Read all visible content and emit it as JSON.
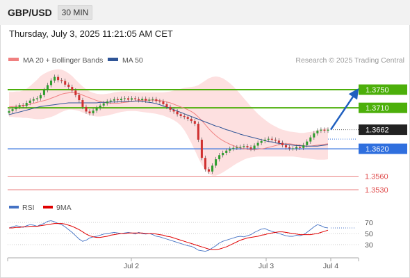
{
  "header": {
    "symbol": "GBP/USD",
    "timeframe": "30 MIN",
    "datetime": "Thursday, July 3, 2025 11:21:05 AM CET"
  },
  "legend": {
    "bollinger": {
      "label": "MA 20 + Bollinger Bands",
      "color": "#f08080"
    },
    "ma50": {
      "label": "MA 50",
      "color": "#2f5597"
    },
    "credit": "Research © 2025 Trading Central"
  },
  "rsi_legend": {
    "rsi": {
      "label": "RSI",
      "color": "#4472c4"
    },
    "ma9": {
      "label": "9MA",
      "color": "#e00000"
    }
  },
  "chart_data": {
    "type": "candlestick",
    "symbol": "GBP/USD",
    "timeframe": "30 MIN",
    "x_ticks": [
      "Jul 2",
      "Jul 3",
      "Jul 4"
    ],
    "y_range": [
      1.351,
      1.38
    ],
    "current_price": "1.3662",
    "levels": [
      {
        "value": "1.3750",
        "type": "resistance",
        "color": "#4caf0a",
        "style": "badge"
      },
      {
        "value": "1.3710",
        "type": "resistance",
        "color": "#4caf0a",
        "style": "badge"
      },
      {
        "value": "1.3620",
        "type": "pivot",
        "color": "#2f6fde",
        "style": "badge"
      },
      {
        "value": "1.3560",
        "type": "support",
        "color": "#e05050",
        "style": "text"
      },
      {
        "value": "1.3530",
        "type": "support",
        "color": "#e05050",
        "style": "text"
      }
    ],
    "closes": [
      1.3703,
      1.3707,
      1.3712,
      1.3716,
      1.3714,
      1.3721,
      1.3726,
      1.3729,
      1.3731,
      1.3738,
      1.3749,
      1.376,
      1.377,
      1.3778,
      1.3771,
      1.3769,
      1.3761,
      1.3756,
      1.3748,
      1.3738,
      1.3727,
      1.3712,
      1.3702,
      1.3698,
      1.3704,
      1.371,
      1.3715,
      1.372,
      1.3724,
      1.3726,
      1.3729,
      1.3727,
      1.373,
      1.3731,
      1.3728,
      1.3731,
      1.3729,
      1.3727,
      1.373,
      1.3726,
      1.3728,
      1.3729,
      1.3725,
      1.3724,
      1.3718,
      1.3712,
      1.3706,
      1.3702,
      1.3696,
      1.3692,
      1.369,
      1.3686,
      1.3681,
      1.3675,
      1.364,
      1.36,
      1.3575,
      1.357,
      1.3583,
      1.3597,
      1.3606,
      1.3611,
      1.3616,
      1.362,
      1.3622,
      1.3623,
      1.3624,
      1.3626,
      1.3623,
      1.362,
      1.3627,
      1.3633,
      1.3637,
      1.364,
      1.3642,
      1.364,
      1.3638,
      1.3633,
      1.3628,
      1.3623,
      1.3621,
      1.3621,
      1.3624,
      1.3622,
      1.3628,
      1.3636,
      1.3645,
      1.3654,
      1.366,
      1.3662,
      1.366,
      1.3662
    ],
    "ma20": [
      1.3712,
      1.3713,
      1.3713,
      1.3714,
      1.3715,
      1.3716,
      1.3718,
      1.372,
      1.3722,
      1.3724,
      1.3726,
      1.3728,
      1.3731,
      1.3734,
      1.3737,
      1.374,
      1.3742,
      1.3743,
      1.3744,
      1.3743,
      1.3741,
      1.3738,
      1.3735,
      1.3732,
      1.3729,
      1.3726,
      1.3724,
      1.3722,
      1.3721,
      1.372,
      1.372,
      1.372,
      1.3721,
      1.3722,
      1.3723,
      1.3724,
      1.3725,
      1.3726,
      1.3727,
      1.3727,
      1.3727,
      1.3727,
      1.3727,
      1.3726,
      1.3725,
      1.3723,
      1.3721,
      1.3718,
      1.3715,
      1.3712,
      1.3709,
      1.3706,
      1.3702,
      1.3697,
      1.369,
      1.3682,
      1.3673,
      1.3664,
      1.3656,
      1.3649,
      1.3643,
      1.3638,
      1.3634,
      1.363,
      1.3627,
      1.3624,
      1.3622,
      1.362,
      1.3619,
      1.3618,
      1.3618,
      1.3619,
      1.362,
      1.3621,
      1.3623,
      1.3625,
      1.3627,
      1.3629,
      1.363,
      1.3631,
      1.3631,
      1.363,
      1.3629,
      1.3628,
      1.3627,
      1.3626,
      1.3626,
      1.3627,
      1.3628,
      1.3629,
      1.363,
      1.3631
    ],
    "bb_upper": [
      1.3745,
      1.3745,
      1.3746,
      1.3746,
      1.3748,
      1.3752,
      1.3758,
      1.3765,
      1.3772,
      1.378,
      1.3785,
      1.3789,
      1.3792,
      1.3794,
      1.3795,
      1.3794,
      1.3791,
      1.3786,
      1.378,
      1.3772,
      1.3764,
      1.3757,
      1.3751,
      1.3746,
      1.3743,
      1.3741,
      1.374,
      1.374,
      1.3741,
      1.3742,
      1.3744,
      1.3745,
      1.3746,
      1.3746,
      1.3746,
      1.3745,
      1.3744,
      1.3744,
      1.3744,
      1.3744,
      1.3744,
      1.3744,
      1.3744,
      1.3744,
      1.3744,
      1.3745,
      1.3746,
      1.3748,
      1.375,
      1.3752,
      1.3754,
      1.3755,
      1.3756,
      1.3757,
      1.376,
      1.3765,
      1.377,
      1.3775,
      1.3778,
      1.3779,
      1.3778,
      1.3775,
      1.377,
      1.3764,
      1.3757,
      1.3749,
      1.374,
      1.3731,
      1.3722,
      1.3713,
      1.3705,
      1.3697,
      1.369,
      1.3684,
      1.3678,
      1.3673,
      1.3669,
      1.3665,
      1.3662,
      1.366,
      1.3658,
      1.3657,
      1.3656,
      1.3655,
      1.3655,
      1.3656,
      1.3657,
      1.3659,
      1.3661,
      1.3663,
      1.3665,
      1.3667
    ],
    "bb_lower": [
      1.369,
      1.369,
      1.3689,
      1.3689,
      1.3688,
      1.3688,
      1.3687,
      1.3686,
      1.3685,
      1.3685,
      1.3686,
      1.3688,
      1.369,
      1.3693,
      1.3697,
      1.3701,
      1.3704,
      1.3706,
      1.3706,
      1.3705,
      1.3703,
      1.37,
      1.3697,
      1.3694,
      1.3692,
      1.3691,
      1.3691,
      1.3692,
      1.3693,
      1.3695,
      1.3697,
      1.3699,
      1.3701,
      1.3702,
      1.3703,
      1.3703,
      1.3703,
      1.3702,
      1.3701,
      1.37,
      1.3699,
      1.3698,
      1.3697,
      1.3695,
      1.3693,
      1.369,
      1.3687,
      1.3683,
      1.3678,
      1.3671,
      1.3661,
      1.3648,
      1.3633,
      1.3617,
      1.36,
      1.3585,
      1.3573,
      1.3565,
      1.3561,
      1.3561,
      1.3564,
      1.3568,
      1.3573,
      1.3578,
      1.3583,
      1.3588,
      1.3592,
      1.3596,
      1.3599,
      1.3601,
      1.3602,
      1.3603,
      1.3603,
      1.3603,
      1.3603,
      1.3603,
      1.3603,
      1.3603,
      1.3603,
      1.3603,
      1.3603,
      1.3603,
      1.3602,
      1.3601,
      1.36,
      1.3599,
      1.3598,
      1.3597,
      1.3596,
      1.3596,
      1.3596,
      1.3597
    ],
    "ma50": [
      1.3695,
      1.3697,
      1.3699,
      1.3701,
      1.3703,
      1.3705,
      1.3707,
      1.3709,
      1.3711,
      1.3713,
      1.3714,
      1.3715,
      1.3716,
      1.3717,
      1.3718,
      1.3719,
      1.372,
      1.3721,
      1.3721,
      1.3721,
      1.3721,
      1.3721,
      1.3721,
      1.3721,
      1.3721,
      1.3721,
      1.3722,
      1.3722,
      1.3722,
      1.3723,
      1.3723,
      1.3723,
      1.3724,
      1.3724,
      1.3724,
      1.3724,
      1.3725,
      1.3725,
      1.3724,
      1.3723,
      1.3722,
      1.3721,
      1.3719,
      1.3717,
      1.3714,
      1.3712,
      1.3709,
      1.3706,
      1.3703,
      1.37,
      1.3697,
      1.3694,
      1.3691,
      1.3688,
      1.3685,
      1.3682,
      1.3679,
      1.3676,
      1.3673,
      1.367,
      1.3668,
      1.3665,
      1.3662,
      1.366,
      1.3657,
      1.3655,
      1.3652,
      1.365,
      1.3648,
      1.3646,
      1.3644,
      1.3642,
      1.364,
      1.3638,
      1.3636,
      1.3635,
      1.3633,
      1.3632,
      1.3631,
      1.363,
      1.3629,
      1.3628,
      1.3627,
      1.3627,
      1.3626,
      1.3626,
      1.3626,
      1.3626,
      1.3626,
      1.3627,
      1.3628,
      1.3629
    ],
    "forecast_arrow": {
      "from": "1.3662",
      "to": "1.3710"
    },
    "rsi": {
      "ticks": [
        "70",
        "50",
        "30"
      ],
      "y_range": [
        0,
        100
      ],
      "values": [
        60,
        62,
        64,
        63,
        61,
        64,
        66,
        65,
        63,
        66,
        68,
        72,
        73,
        71,
        68,
        66,
        62,
        57,
        52,
        46,
        40,
        36,
        38,
        42,
        44,
        45,
        47,
        49,
        50,
        51,
        52,
        51,
        50,
        51,
        52,
        51,
        49,
        52,
        50,
        49,
        50,
        48,
        45,
        44,
        42,
        40,
        38,
        36,
        34,
        32,
        30,
        28,
        27,
        24,
        20,
        19,
        18,
        20,
        24,
        28,
        33,
        36,
        38,
        40,
        42,
        44,
        45,
        44,
        46,
        48,
        52,
        55,
        58,
        59,
        56,
        54,
        52,
        50,
        48,
        46,
        45,
        45,
        47,
        46,
        48,
        52,
        57,
        62,
        66,
        64,
        61,
        60
      ],
      "ma9": [
        60,
        60,
        61,
        61,
        62,
        62,
        63,
        63,
        63,
        64,
        65,
        66,
        67,
        68,
        68,
        68,
        67,
        65,
        63,
        60,
        57,
        53,
        49,
        46,
        44,
        43,
        43,
        44,
        45,
        47,
        48,
        49,
        50,
        50,
        51,
        51,
        51,
        51,
        51,
        50,
        50,
        50,
        49,
        48,
        47,
        45,
        44,
        42,
        40,
        38,
        36,
        34,
        32,
        30,
        28,
        26,
        24,
        22,
        21,
        21,
        22,
        24,
        26,
        29,
        32,
        35,
        38,
        40,
        42,
        43,
        44,
        45,
        47,
        48,
        50,
        51,
        52,
        53,
        53,
        52,
        51,
        50,
        49,
        48,
        48,
        48,
        48,
        49,
        50,
        52,
        54,
        56
      ]
    }
  }
}
